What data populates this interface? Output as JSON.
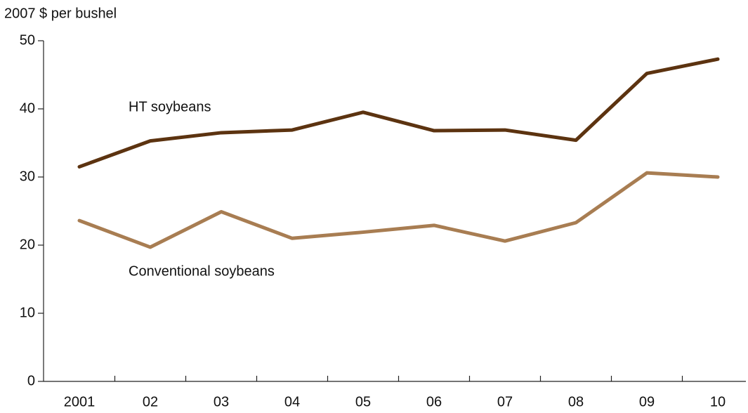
{
  "chart_data": {
    "type": "line",
    "y_axis_label": "2007 $ per bushel",
    "categories": [
      "2001",
      "02",
      "03",
      "04",
      "05",
      "06",
      "07",
      "08",
      "09",
      "10"
    ],
    "series": [
      {
        "name": "HT soybeans",
        "color": "#5c3310",
        "values": [
          31.5,
          35.3,
          36.5,
          36.9,
          39.5,
          36.8,
          36.9,
          35.4,
          45.2,
          47.3
        ]
      },
      {
        "name": "Conventional soybeans",
        "color": "#a87d52",
        "values": [
          23.6,
          19.7,
          24.9,
          21.0,
          21.9,
          22.9,
          20.6,
          23.3,
          30.6,
          30.0
        ]
      }
    ],
    "ylim": [
      0,
      50
    ],
    "yticks": [
      0,
      10,
      20,
      30,
      40,
      50
    ],
    "grid": false
  }
}
